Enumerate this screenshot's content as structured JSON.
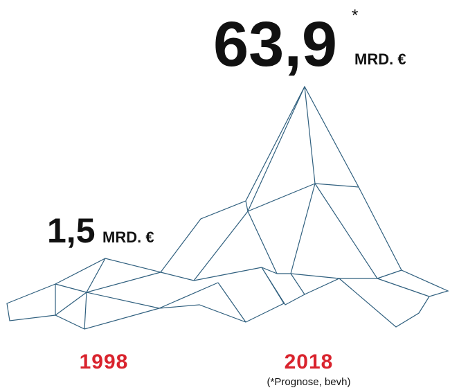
{
  "headline": {
    "value": "63,9",
    "footnote_mark": "*",
    "unit": "MRD. €"
  },
  "start": {
    "value": "1,5",
    "unit": "MRD. €"
  },
  "years": {
    "start": "1998",
    "end": "2018"
  },
  "source_note": "(*Prognose, bevh)"
}
